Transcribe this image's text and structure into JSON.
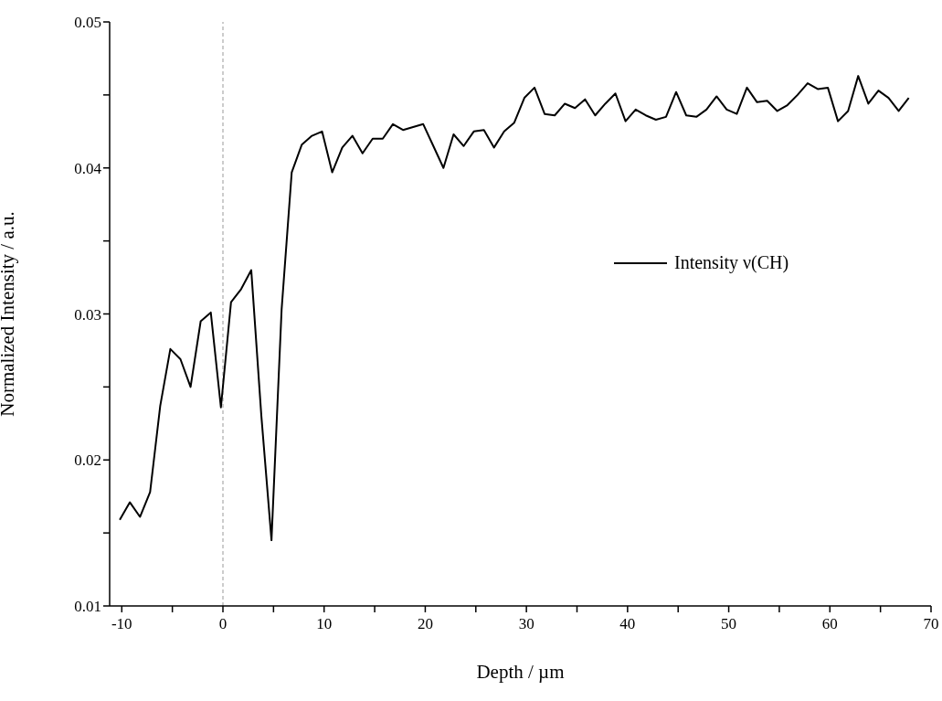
{
  "chart_data": {
    "type": "line",
    "xlabel": "Depth / µm",
    "ylabel": "Normalized Intensity / a.u.",
    "x": [
      -10.2,
      -9.2,
      -8.2,
      -7.2,
      -6.2,
      -5.2,
      -4.2,
      -3.2,
      -2.2,
      -1.2,
      -0.2,
      0.8,
      1.8,
      2.8,
      3.8,
      4.8,
      5.8,
      6.8,
      7.8,
      8.8,
      9.8,
      10.8,
      11.8,
      12.8,
      13.8,
      14.8,
      15.8,
      16.8,
      17.8,
      18.8,
      19.8,
      20.8,
      21.8,
      22.8,
      23.8,
      24.8,
      25.8,
      26.8,
      27.8,
      28.8,
      29.8,
      30.8,
      31.8,
      32.8,
      33.8,
      34.8,
      35.8,
      36.8,
      37.8,
      38.8,
      39.8,
      40.8,
      41.8,
      42.8,
      43.8,
      44.8,
      45.8,
      46.8,
      47.8,
      48.8,
      49.8,
      50.8,
      51.8,
      52.8,
      53.8,
      54.8,
      55.8,
      56.8,
      57.8,
      58.8,
      59.8,
      60.8,
      61.8,
      62.8,
      63.8,
      64.8,
      65.8,
      66.8,
      67.8
    ],
    "series": [
      {
        "name": "Intensity ν(CH)",
        "color": "#000000",
        "values": [
          0.0159,
          0.0171,
          0.0161,
          0.0178,
          0.0237,
          0.0276,
          0.0269,
          0.025,
          0.0295,
          0.0301,
          0.0236,
          0.0308,
          0.0317,
          0.033,
          0.023,
          0.0145,
          0.0303,
          0.0397,
          0.0416,
          0.0422,
          0.0425,
          0.0397,
          0.0414,
          0.0422,
          0.041,
          0.042,
          0.042,
          0.043,
          0.0426,
          0.0428,
          0.043,
          0.0415,
          0.04,
          0.0423,
          0.0415,
          0.0425,
          0.0426,
          0.0414,
          0.0425,
          0.0431,
          0.0448,
          0.0455,
          0.0437,
          0.0436,
          0.0444,
          0.0441,
          0.0447,
          0.0436,
          0.0444,
          0.0451,
          0.0432,
          0.044,
          0.0436,
          0.0433,
          0.0435,
          0.0452,
          0.0436,
          0.0435,
          0.044,
          0.0449,
          0.044,
          0.0437,
          0.0455,
          0.0445,
          0.0446,
          0.0439,
          0.0443,
          0.045,
          0.0458,
          0.0454,
          0.0455,
          0.0432,
          0.0439,
          0.0463,
          0.0444,
          0.0453,
          0.0448,
          0.0439,
          0.0448
        ]
      }
    ],
    "xlim": [
      -11.2,
      70
    ],
    "xticks": [
      -10,
      {
        "value": -5,
        "label": null
      },
      0,
      {
        "value": 5,
        "label": null
      },
      10,
      {
        "value": 15,
        "label": null
      },
      20,
      {
        "value": 25,
        "label": null
      },
      30,
      {
        "value": 35,
        "label": null
      },
      40,
      {
        "value": 45,
        "label": null
      },
      50,
      {
        "value": 55,
        "label": null
      },
      60,
      {
        "value": 65,
        "label": null
      },
      70
    ],
    "ylim": [
      0.01,
      0.05
    ],
    "yticks": [
      0.01,
      {
        "value": 0.015,
        "label": null
      },
      0.02,
      {
        "value": 0.025,
        "label": null
      },
      0.03,
      {
        "value": 0.035,
        "label": null
      },
      0.04,
      {
        "value": 0.045,
        "label": null
      },
      0.05
    ],
    "ref_lines": [
      {
        "axis": "x",
        "value": 0,
        "color": "#999999",
        "line_style": "dashed"
      }
    ],
    "legend": "right",
    "grid": false,
    "marker": "none",
    "line_style": "solid"
  }
}
